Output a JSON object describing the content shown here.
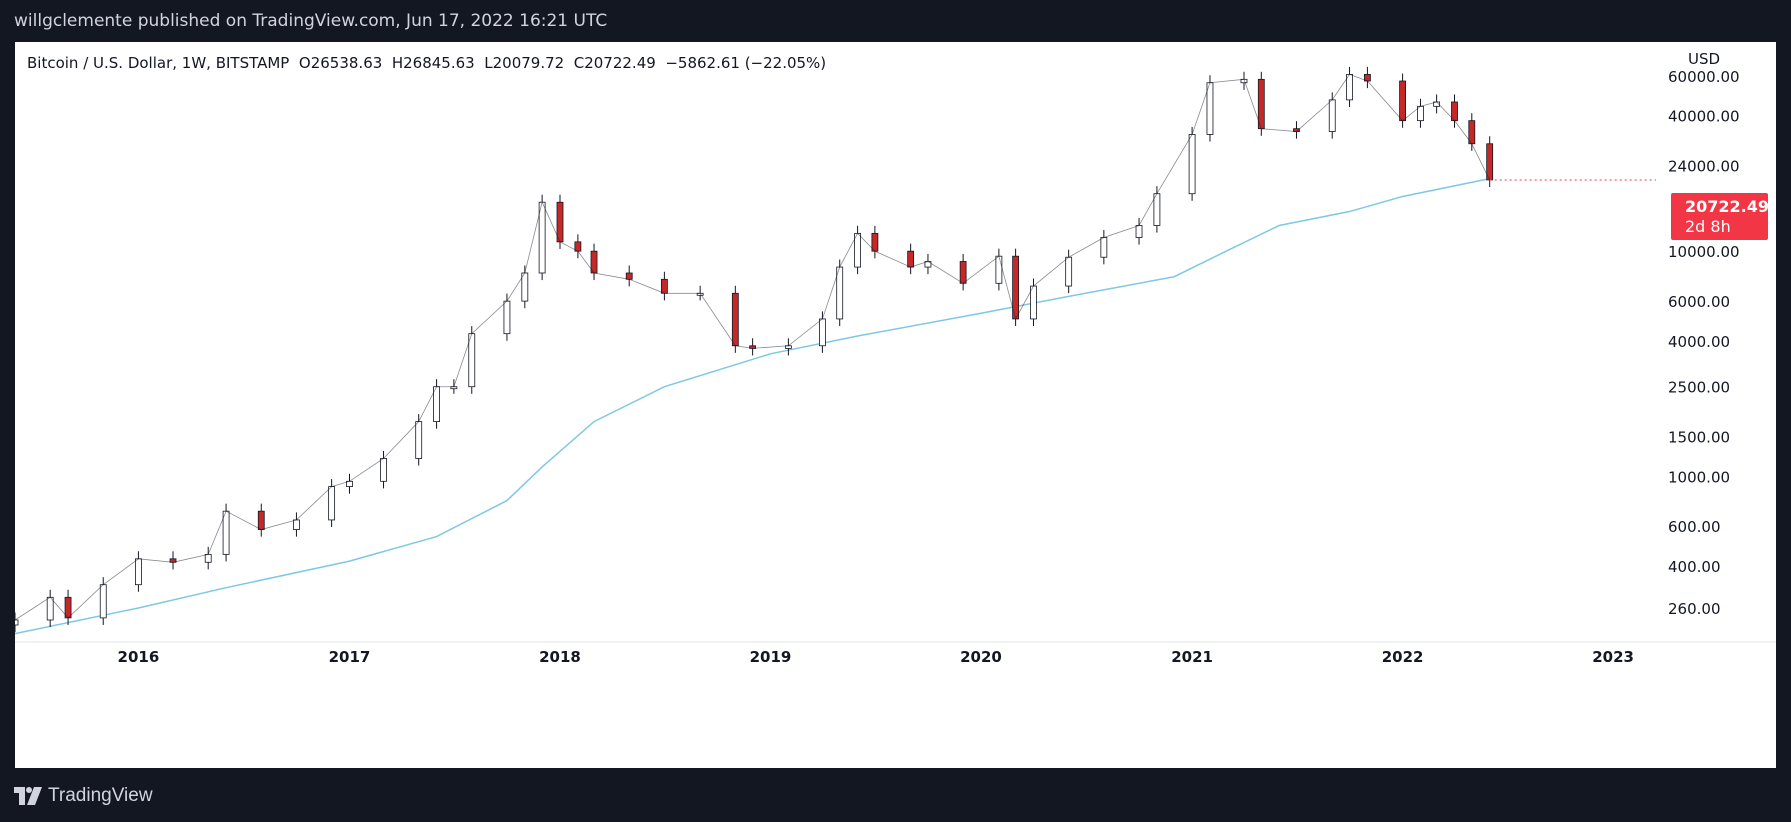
{
  "header": {
    "published": "willgclemente published on TradingView.com, Jun 17, 2022 16:21 UTC"
  },
  "legend": {
    "symbol": "Bitcoin / U.S. Dollar, 1W, BITSTAMP",
    "open": "O26538.63",
    "high": "H26845.63",
    "low": "L20079.72",
    "close": "C20722.49",
    "change": "−5862.61 (−22.05%)"
  },
  "price_tag": {
    "price": "20722.49",
    "countdown": "2d 8h",
    "color": "#f23645"
  },
  "footer": {
    "brand": "TradingView"
  },
  "colors": {
    "background": "#131722",
    "up": "#26a69a",
    "down": "#ef5350",
    "ma": "#7ec8e3"
  },
  "chart_data": {
    "type": "line",
    "scale": "log",
    "currency": "USD",
    "yticks": [
      260,
      400,
      600,
      1000,
      1500,
      2500,
      4000,
      6000,
      10000,
      24000,
      40000,
      60000
    ],
    "ytick_labels": [
      "260.00",
      "400.00",
      "600.00",
      "1000.00",
      "1500.00",
      "2500.00",
      "4000.00",
      "6000.00",
      "10000.00",
      "24000.00",
      "40000.00",
      "60000.00"
    ],
    "xticks": [
      "2016",
      "2017",
      "2018",
      "2019",
      "2020",
      "2021",
      "2022",
      "2023"
    ],
    "xlim": [
      "2015-06-01",
      "2023-04-01"
    ],
    "ylim": [
      190,
      90000
    ],
    "series": [
      {
        "type": "price",
        "x": [
          "2015-06",
          "2015-08",
          "2015-09",
          "2015-11",
          "2016-01",
          "2016-03",
          "2016-05",
          "2016-06",
          "2016-08",
          "2016-10",
          "2016-12",
          "2017-01",
          "2017-03",
          "2017-05",
          "2017-06",
          "2017-07",
          "2017-08",
          "2017-10",
          "2017-11",
          "2017-12",
          "2018-01",
          "2018-02",
          "2018-03",
          "2018-05",
          "2018-07",
          "2018-09",
          "2018-11",
          "2018-12",
          "2019-02",
          "2019-04",
          "2019-05",
          "2019-06",
          "2019-07",
          "2019-09",
          "2019-10",
          "2019-12",
          "2020-02",
          "2020-03",
          "2020-04",
          "2020-06",
          "2020-08",
          "2020-10",
          "2020-11",
          "2021-01",
          "2021-02",
          "2021-04",
          "2021-05",
          "2021-07",
          "2021-09",
          "2021-10",
          "2021-11",
          "2022-01",
          "2022-02",
          "2022-03",
          "2022-04",
          "2022-05",
          "2022-06"
        ],
        "y": [
          230,
          290,
          235,
          330,
          430,
          415,
          450,
          700,
          580,
          640,
          900,
          950,
          1200,
          1750,
          2500,
          2500,
          4300,
          6000,
          8000,
          16500,
          11000,
          10000,
          8000,
          7500,
          6500,
          6500,
          3800,
          3700,
          3800,
          5000,
          8500,
          12000,
          10000,
          8500,
          9000,
          7200,
          9500,
          5000,
          7000,
          9400,
          11500,
          13000,
          18000,
          33000,
          56000,
          58000,
          35000,
          34000,
          47000,
          61000,
          57000,
          38000,
          44000,
          46000,
          38000,
          30000,
          20722.49
        ]
      },
      {
        "type": "moving_average",
        "x": [
          "2015-06",
          "2016-01",
          "2016-06",
          "2017-01",
          "2017-06",
          "2017-10",
          "2017-12",
          "2018-03",
          "2018-07",
          "2019-01",
          "2019-06",
          "2020-01",
          "2020-06",
          "2020-12",
          "2021-03",
          "2021-06",
          "2021-10",
          "2022-01",
          "2022-06"
        ],
        "y": [
          200,
          260,
          320,
          420,
          540,
          780,
          1100,
          1750,
          2500,
          3500,
          4200,
          5300,
          6300,
          7700,
          10000,
          13000,
          15000,
          17500,
          21000
        ]
      }
    ]
  }
}
